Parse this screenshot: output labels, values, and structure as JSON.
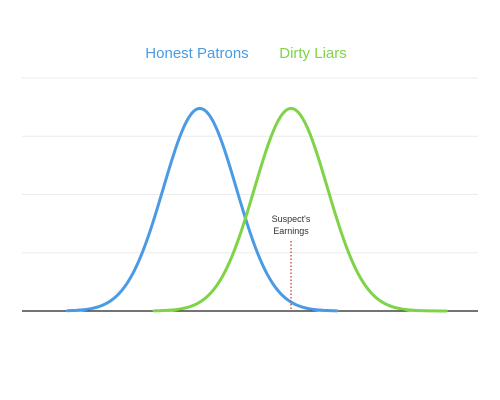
{
  "chart_data": {
    "type": "line",
    "title": "",
    "xlabel": "",
    "ylabel": "",
    "xlim": [
      0,
      10
    ],
    "ylim": [
      0,
      1.15
    ],
    "grid": true,
    "legend_placement": "top-center",
    "series": [
      {
        "name": "Honest Patrons",
        "color": "#4a9be4",
        "mean": 3.9,
        "sd": 0.8,
        "peak": 1.0,
        "x_start": 1.0,
        "x_end": 6.9
      },
      {
        "name": "Dirty Liars",
        "color": "#7fd347",
        "mean": 5.9,
        "sd": 0.8,
        "peak": 1.0,
        "x_start": 2.9,
        "x_end": 9.3
      }
    ],
    "annotations": [
      {
        "lines": [
          "Suspect's",
          "Earnings"
        ],
        "x": 5.9,
        "style": "dotted",
        "color": "#d9473b"
      }
    ]
  }
}
